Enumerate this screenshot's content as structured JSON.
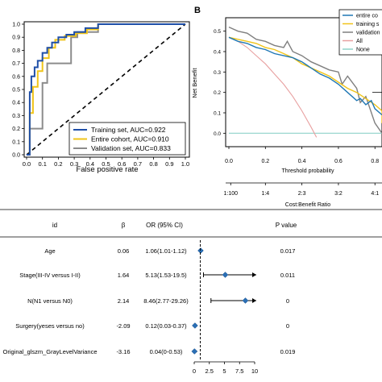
{
  "panel_b_label": "B",
  "chart_data": [
    {
      "type": "line",
      "panel": "A",
      "xlabel": "False positive rate",
      "ylabel": "",
      "xlim": [
        0,
        1
      ],
      "ylim": [
        0,
        1
      ],
      "xticks": [
        "0.0",
        "0.1",
        "0.2",
        "0.3",
        "0.4",
        "0.5",
        "0.6",
        "0.7",
        "0.8",
        "0.9",
        "1.0"
      ],
      "yticks": [
        "0.0",
        "0.1",
        "0.2",
        "0.3",
        "0.4",
        "0.5",
        "0.6",
        "0.7",
        "0.8",
        "0.9",
        "1.0"
      ],
      "legend_position": "bottom-right",
      "series": [
        {
          "name": "Training set, AUC=0.922",
          "color": "#1f4fa8",
          "x": [
            0,
            0.02,
            0.02,
            0.03,
            0.03,
            0.05,
            0.05,
            0.07,
            0.07,
            0.1,
            0.1,
            0.13,
            0.13,
            0.16,
            0.16,
            0.2,
            0.2,
            0.25,
            0.25,
            0.3,
            0.3,
            0.37,
            0.37,
            0.45,
            0.45,
            1
          ],
          "y": [
            0,
            0,
            0.48,
            0.48,
            0.6,
            0.6,
            0.67,
            0.67,
            0.72,
            0.72,
            0.78,
            0.78,
            0.82,
            0.82,
            0.86,
            0.86,
            0.9,
            0.9,
            0.92,
            0.92,
            0.94,
            0.94,
            0.97,
            0.97,
            1,
            1
          ]
        },
        {
          "name": "Entire cohort, AUC=0.910",
          "color": "#f0c419",
          "x": [
            0,
            0.02,
            0.02,
            0.04,
            0.04,
            0.07,
            0.07,
            0.1,
            0.1,
            0.14,
            0.14,
            0.18,
            0.18,
            0.24,
            0.24,
            0.31,
            0.31,
            0.38,
            0.38,
            0.45,
            0.45,
            1
          ],
          "y": [
            0,
            0,
            0.32,
            0.32,
            0.52,
            0.52,
            0.64,
            0.64,
            0.74,
            0.74,
            0.82,
            0.82,
            0.88,
            0.88,
            0.91,
            0.91,
            0.93,
            0.93,
            0.96,
            0.96,
            1,
            1
          ]
        },
        {
          "name": "Validation set, AUC=0.833",
          "color": "#8c8c8c",
          "x": [
            0,
            0.02,
            0.02,
            0.1,
            0.1,
            0.13,
            0.13,
            0.28,
            0.28,
            0.32,
            0.32,
            0.45,
            0.45,
            1
          ],
          "y": [
            0,
            0,
            0.2,
            0.2,
            0.55,
            0.55,
            0.7,
            0.7,
            0.9,
            0.9,
            0.94,
            0.94,
            1,
            1
          ]
        }
      ]
    },
    {
      "type": "line",
      "panel": "B",
      "xlabel": "Threshold probability",
      "ylabel": "Net Benefit",
      "x2label": "Cost:Benefit Ratio",
      "xticks": [
        "0.0",
        "0.2",
        "0.4",
        "0.6",
        "0.8"
      ],
      "x2ticks": [
        "1:100",
        "1:4",
        "2:3",
        "3:2",
        "4:1"
      ],
      "yticks": [
        "0.0",
        "0.1",
        "0.2",
        "0.3",
        "0.4",
        "0.5"
      ],
      "xlim": [
        0,
        0.9
      ],
      "ylim": [
        -0.05,
        0.55
      ],
      "legend_position": "top-right",
      "series": [
        {
          "name": "entire co",
          "color": "#1f77b4",
          "x": [
            0,
            0.05,
            0.1,
            0.15,
            0.2,
            0.25,
            0.3,
            0.35,
            0.4,
            0.45,
            0.5,
            0.55,
            0.6,
            0.65,
            0.7,
            0.72,
            0.75,
            0.78,
            0.8,
            0.85
          ],
          "y": [
            0.47,
            0.45,
            0.44,
            0.42,
            0.41,
            0.39,
            0.38,
            0.37,
            0.35,
            0.32,
            0.29,
            0.27,
            0.24,
            0.2,
            0.16,
            0.17,
            0.14,
            0.16,
            0.12,
            0.09
          ]
        },
        {
          "name": "training s",
          "color": "#f0c419",
          "x": [
            0,
            0.05,
            0.1,
            0.15,
            0.2,
            0.25,
            0.3,
            0.35,
            0.4,
            0.45,
            0.5,
            0.55,
            0.6,
            0.65,
            0.7,
            0.75,
            0.8,
            0.85,
            0.88
          ],
          "y": [
            0.47,
            0.46,
            0.45,
            0.44,
            0.42,
            0.41,
            0.39,
            0.37,
            0.34,
            0.32,
            0.3,
            0.28,
            0.25,
            0.22,
            0.2,
            0.17,
            0.14,
            0.11,
            0.05
          ]
        },
        {
          "name": "validation",
          "color": "#7f7f7f",
          "x": [
            0,
            0.05,
            0.1,
            0.15,
            0.2,
            0.25,
            0.3,
            0.32,
            0.35,
            0.4,
            0.45,
            0.5,
            0.55,
            0.6,
            0.62,
            0.65,
            0.7,
            0.72,
            0.75,
            0.8,
            0.84
          ],
          "y": [
            0.52,
            0.5,
            0.49,
            0.46,
            0.45,
            0.43,
            0.42,
            0.45,
            0.4,
            0.38,
            0.35,
            0.33,
            0.31,
            0.3,
            0.24,
            0.28,
            0.22,
            0.15,
            0.18,
            0.05,
            0.0
          ]
        },
        {
          "name": "All",
          "color": "#e8a0a0",
          "x": [
            0,
            0.05,
            0.1,
            0.15,
            0.2,
            0.25,
            0.3,
            0.35,
            0.4,
            0.45,
            0.48
          ],
          "y": [
            0.47,
            0.45,
            0.42,
            0.38,
            0.34,
            0.29,
            0.24,
            0.18,
            0.11,
            0.03,
            -0.02
          ]
        },
        {
          "name": "None",
          "color": "#8fd3c9",
          "x": [
            0,
            0.9
          ],
          "y": [
            0,
            0
          ]
        }
      ]
    },
    {
      "type": "table",
      "panel": "forest",
      "columns": [
        "id",
        "β",
        "OR (95% CI)",
        "P value"
      ],
      "xticks": [
        "0",
        "2.5",
        "5",
        "7.5",
        "10"
      ],
      "xlim": [
        0,
        10
      ],
      "reference_line": 1,
      "rows": [
        {
          "id": "Age",
          "beta": "0.06",
          "or_ci": "1.06(1.01-1.12)",
          "p": "0.017",
          "or": 1.06,
          "lo": 1.01,
          "hi": 1.12,
          "arrow": false
        },
        {
          "id": "Stage(III-IV versus I-II)",
          "beta": "1.64",
          "or_ci": "5.13(1.53-19.5)",
          "p": "0.011",
          "or": 5.13,
          "lo": 1.53,
          "hi": 19.5,
          "arrow": true
        },
        {
          "id": "N(N1 versus N0)",
          "beta": "2.14",
          "or_ci": "8.46(2.77-29.26)",
          "p": "0",
          "or": 8.46,
          "lo": 2.77,
          "hi": 29.26,
          "arrow": true
        },
        {
          "id": "Surgery(yeses versus no)",
          "beta": "-2.09",
          "or_ci": "0.12(0.03-0.37)",
          "p": "0",
          "or": 0.12,
          "lo": 0.03,
          "hi": 0.37,
          "arrow": false
        },
        {
          "id": "Original_glszm_GrayLevelVariance",
          "beta": "-3.16",
          "or_ci": "0.04(0-0.53)",
          "p": "0.019",
          "or": 0.04,
          "lo": 0,
          "hi": 0.53,
          "arrow": false
        }
      ]
    }
  ]
}
